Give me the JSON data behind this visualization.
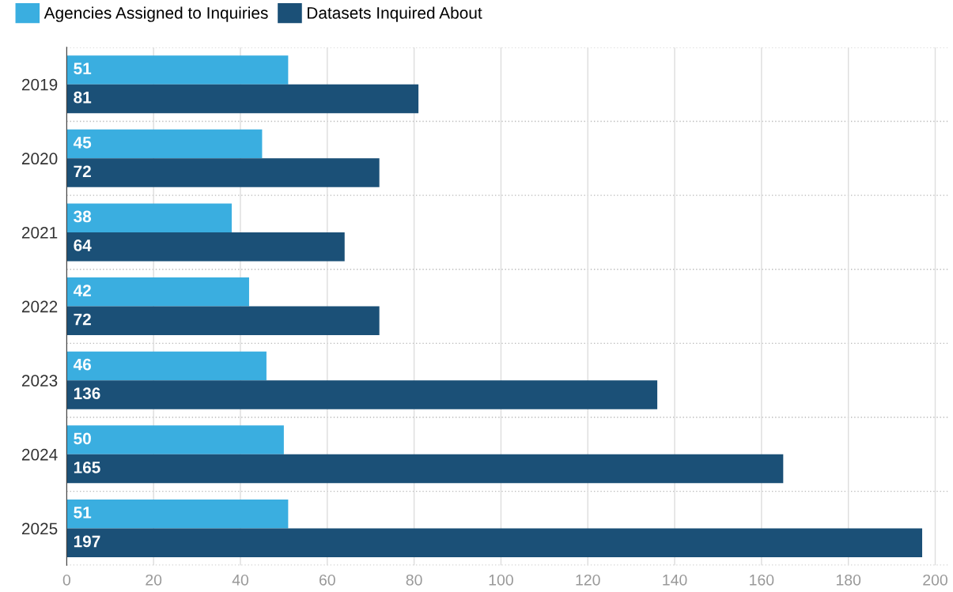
{
  "chart_data": {
    "type": "bar",
    "orientation": "horizontal",
    "categories": [
      "2019",
      "2020",
      "2021",
      "2022",
      "2023",
      "2024",
      "2025"
    ],
    "series": [
      {
        "name": "Agencies Assigned to Inquiries",
        "color": "#3aaee0",
        "values": [
          51,
          45,
          38,
          42,
          46,
          50,
          51
        ]
      },
      {
        "name": "Datasets Inquired About",
        "color": "#1b5077",
        "values": [
          81,
          72,
          64,
          72,
          136,
          165,
          197
        ]
      }
    ],
    "xlim": [
      0,
      203
    ],
    "xticks": [
      0,
      20,
      40,
      60,
      80,
      100,
      120,
      140,
      160,
      180,
      200
    ],
    "grid": "x",
    "legend": "top left",
    "data_labels": true
  }
}
